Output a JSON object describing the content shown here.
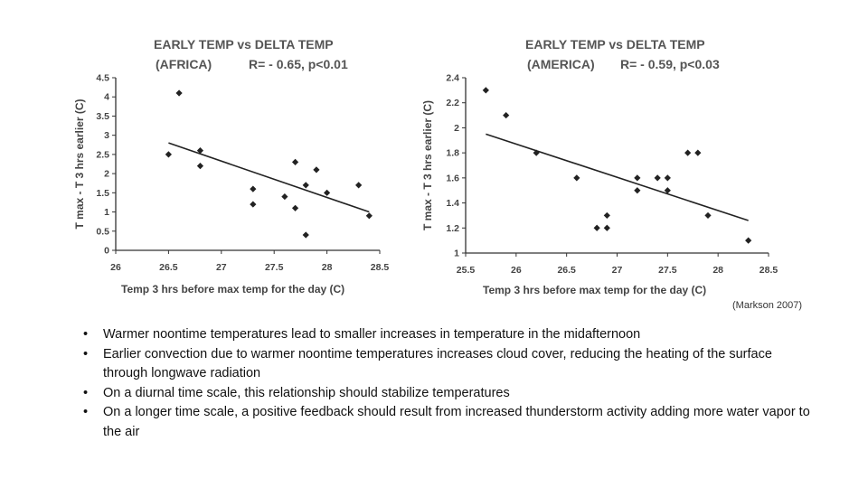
{
  "chart_data": [
    {
      "type": "scatter",
      "title": "EARLY TEMP vs DELTA TEMP",
      "subtitle_region": "(AFRICA)",
      "subtitle_stat": "R= - 0.65, p<0.01",
      "xlabel": "Temp 3 hrs before max temp for the day (C)",
      "ylabel": "T max - T 3 hrs earlier (C)",
      "xlim": [
        26,
        28.5
      ],
      "ylim": [
        0,
        4.5
      ],
      "x_ticks": [
        "26",
        "26.5",
        "27",
        "27.5",
        "28",
        "28.5"
      ],
      "y_ticks": [
        "0",
        "0.5",
        "1",
        "1.5",
        "2",
        "2.5",
        "3",
        "3.5",
        "4",
        "4.5"
      ],
      "points": [
        {
          "x": 26.5,
          "y": 2.5
        },
        {
          "x": 26.6,
          "y": 4.1
        },
        {
          "x": 26.8,
          "y": 2.6
        },
        {
          "x": 26.8,
          "y": 2.2
        },
        {
          "x": 27.3,
          "y": 1.6
        },
        {
          "x": 27.3,
          "y": 1.2
        },
        {
          "x": 27.6,
          "y": 1.4
        },
        {
          "x": 27.7,
          "y": 2.3
        },
        {
          "x": 27.7,
          "y": 1.1
        },
        {
          "x": 27.8,
          "y": 1.7
        },
        {
          "x": 27.8,
          "y": 0.4
        },
        {
          "x": 27.9,
          "y": 2.1
        },
        {
          "x": 28.0,
          "y": 1.5
        },
        {
          "x": 28.3,
          "y": 1.7
        },
        {
          "x": 28.4,
          "y": 0.9
        }
      ],
      "trendline": {
        "x1": 26.5,
        "y1": 2.8,
        "x2": 28.4,
        "y2": 1.0
      },
      "grid": false
    },
    {
      "type": "scatter",
      "title": "EARLY TEMP vs DELTA TEMP",
      "subtitle_region": "(AMERICA)",
      "subtitle_stat": "R= - 0.59, p<0.03",
      "xlabel": "Temp 3 hrs before max temp for the day (C)",
      "ylabel": "T max - T 3 hrs earlier (C)",
      "xlim": [
        25.5,
        28.5
      ],
      "ylim": [
        1,
        2.4
      ],
      "x_ticks": [
        "25.5",
        "26",
        "26.5",
        "27",
        "27.5",
        "28",
        "28.5"
      ],
      "y_ticks": [
        "1",
        "1.2",
        "1.4",
        "1.6",
        "1.8",
        "2",
        "2.2",
        "2.4"
      ],
      "points": [
        {
          "x": 25.7,
          "y": 2.3
        },
        {
          "x": 25.9,
          "y": 2.1
        },
        {
          "x": 26.2,
          "y": 1.8
        },
        {
          "x": 26.6,
          "y": 1.6
        },
        {
          "x": 26.8,
          "y": 1.2
        },
        {
          "x": 26.9,
          "y": 1.3
        },
        {
          "x": 26.9,
          "y": 1.2
        },
        {
          "x": 27.2,
          "y": 1.6
        },
        {
          "x": 27.2,
          "y": 1.5
        },
        {
          "x": 27.4,
          "y": 1.6
        },
        {
          "x": 27.5,
          "y": 1.6
        },
        {
          "x": 27.5,
          "y": 1.5
        },
        {
          "x": 27.7,
          "y": 1.8
        },
        {
          "x": 27.8,
          "y": 1.8
        },
        {
          "x": 27.9,
          "y": 1.3
        },
        {
          "x": 28.3,
          "y": 1.1
        }
      ],
      "trendline": {
        "x1": 25.7,
        "y1": 1.95,
        "x2": 28.3,
        "y2": 1.26
      },
      "grid": false
    }
  ],
  "citation": "(Markson 2007)",
  "bullet_glyph": "•",
  "bullets": [
    "Warmer noontime temperatures lead to smaller increases in temperature in the midafternoon",
    "Earlier convection due to warmer noontime temperatures increases cloud cover, reducing the heating of the surface through longwave radiation",
    "On a diurnal time scale, this relationship should stabilize temperatures",
    "On a longer time scale, a positive feedback should result from increased thunderstorm activity adding more water vapor to the air"
  ]
}
